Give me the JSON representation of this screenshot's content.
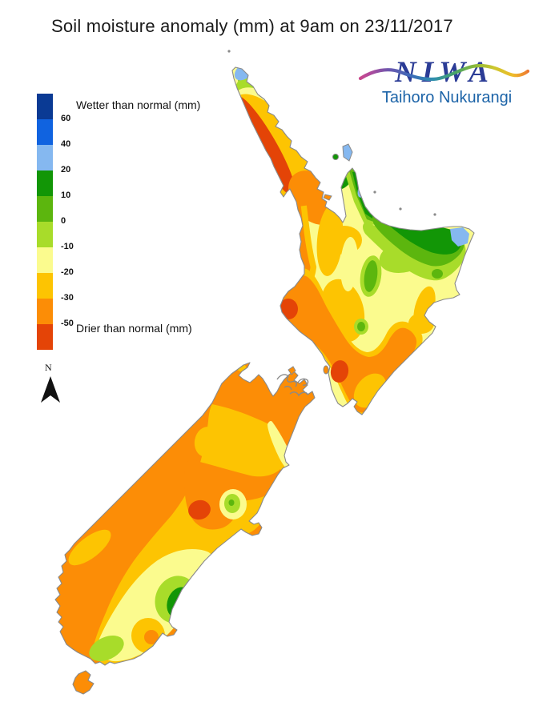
{
  "title": "Soil moisture anomaly (mm) at 9am on 23/11/2017",
  "logo": {
    "name": "NIWA",
    "subtitle": "Taihoro Nukurangi",
    "name_color": "#2b3c96",
    "subtitle_color": "#1d64a8"
  },
  "legend": {
    "wetter_label": "Wetter than normal (mm)",
    "drier_label": "Drier than normal (mm)",
    "ticks": [
      "60",
      "40",
      "20",
      "10",
      "0",
      "-10",
      "-20",
      "-30",
      "-50"
    ],
    "colors": [
      "#0a3a94",
      "#1063e0",
      "#85b8f0",
      "#129606",
      "#5cb60e",
      "#a8dc2a",
      "#fbfb8e",
      "#fdc402",
      "#fc8d06",
      "#e44407"
    ]
  },
  "north_arrow": {
    "label": "N"
  },
  "palette": {
    "navy": "#0a3a94",
    "blue": "#1063e0",
    "lightblue": "#85b8f0",
    "darkgreen": "#129606",
    "midgreen": "#5cb60e",
    "yellowgreen": "#a8dc2a",
    "paleyellow": "#fbfb8e",
    "amber": "#fdc402",
    "orange": "#fc8d06",
    "red": "#e44407",
    "coast": "#8a8a8a"
  }
}
